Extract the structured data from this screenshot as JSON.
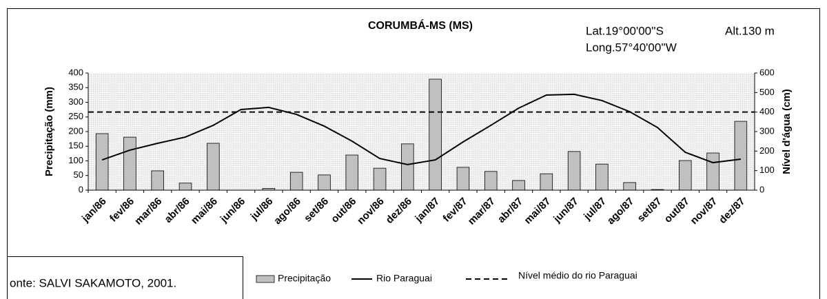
{
  "chart_data": {
    "type": "bar",
    "title": "CORUMBÁ-MS (MS)",
    "annotations": [
      "Lat.19°00'00''S",
      "Long.57°40'00''W",
      "Alt.130 m"
    ],
    "source": "onte: SALVI SAKAMOTO, 2001.",
    "ylabel": "Precipitação (mm)",
    "y2label": "Nível d'água (cm)",
    "categories": [
      "jan/86",
      "fev/86",
      "mar/86",
      "abr/86",
      "mai/86",
      "jun/86",
      "jul/86",
      "ago/86",
      "set/86",
      "out/86",
      "nov/86",
      "dez/86",
      "jan/87",
      "fev/87",
      "mar/87",
      "abr/87",
      "mai/87",
      "jun/87",
      "jul/87",
      "ago/87",
      "set/87",
      "out/87",
      "nov/87",
      "dez/87"
    ],
    "series": [
      {
        "name": "Precipitação",
        "type": "bar",
        "color": "#c0c0c0",
        "values": [
          193,
          181,
          66,
          24,
          160,
          0,
          6,
          61,
          52,
          120,
          75,
          158,
          379,
          78,
          64,
          33,
          56,
          132,
          89,
          26,
          2,
          101,
          127,
          235
        ]
      },
      {
        "name": "Rio Paraguai",
        "type": "line",
        "color": "#000000",
        "axis": "y2",
        "values": [
          155,
          205,
          240,
          272,
          332,
          413,
          424,
          388,
          328,
          251,
          162,
          131,
          155,
          247,
          332,
          420,
          487,
          491,
          459,
          402,
          321,
          194,
          141,
          159
        ]
      }
    ],
    "reference_lines": [
      {
        "name": "Nível médio do rio Paraguai",
        "value": 400,
        "axis": "y2",
        "color": "#000000"
      }
    ],
    "ylim": [
      0,
      400
    ],
    "yticks": [
      0,
      50,
      100,
      150,
      200,
      250,
      300,
      350,
      400
    ],
    "y2lim": [
      0,
      600
    ],
    "y2ticks": [
      0,
      100,
      200,
      300,
      400,
      500,
      600
    ]
  }
}
